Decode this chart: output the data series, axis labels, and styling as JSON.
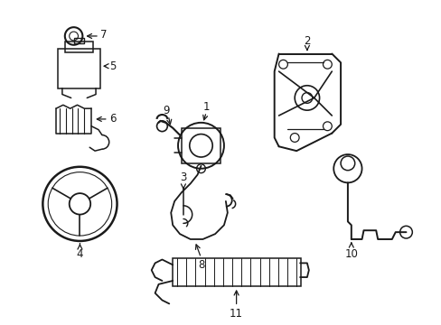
{
  "background_color": "#ffffff",
  "line_color": "#1a1a1a",
  "fig_width": 4.89,
  "fig_height": 3.6,
  "dpi": 100,
  "label_fontsize": 8.5
}
